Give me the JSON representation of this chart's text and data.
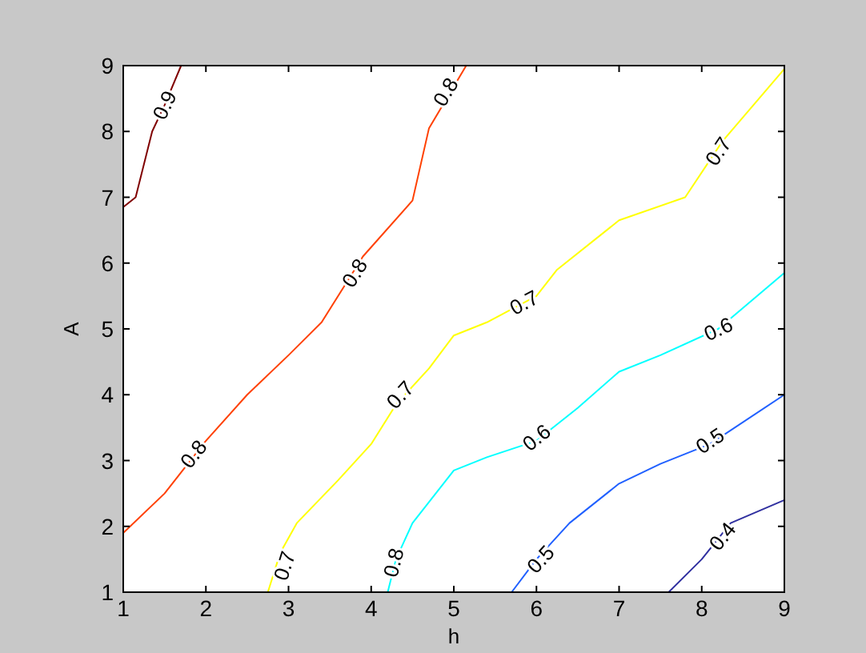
{
  "chart_data": {
    "type": "line",
    "xlabel": "h",
    "ylabel": "A",
    "xlim": [
      1,
      9
    ],
    "ylim": [
      1,
      9
    ],
    "xticks": [
      1,
      2,
      3,
      4,
      5,
      6,
      7,
      8,
      9
    ],
    "yticks": [
      1,
      2,
      3,
      4,
      5,
      6,
      7,
      8,
      9
    ],
    "grid": false,
    "marker": "none",
    "line_style": "solid",
    "series": [
      {
        "color": "#800000",
        "x": [
          1,
          1.15,
          1.35,
          1.5,
          1.7
        ],
        "values": [
          6.85,
          7,
          8,
          8.4,
          9
        ]
      },
      {
        "color": "#ff4000",
        "x": [
          1,
          1.5,
          2,
          2.5,
          3,
          3.4,
          3.9,
          4.5,
          4.7,
          5.15
        ],
        "values": [
          1.9,
          2.5,
          3.3,
          4,
          4.6,
          5.1,
          6.1,
          6.95,
          8.05,
          9
        ]
      },
      {
        "color": "#ffff00",
        "x": [
          2.75,
          2.9,
          3.1,
          3.6,
          4,
          4.3,
          4.7,
          5,
          5.4,
          6,
          6.25,
          7,
          7.8,
          8.25,
          9
        ],
        "values": [
          1,
          1.6,
          2.05,
          2.7,
          3.25,
          3.85,
          4.4,
          4.9,
          5.1,
          5.5,
          5.9,
          6.65,
          7,
          7.85,
          8.95
        ]
      },
      {
        "color": "#00ffff",
        "x": [
          4.2,
          4.3,
          4.5,
          5,
          5.4,
          6,
          6.5,
          7,
          7.5,
          8.2,
          9
        ],
        "values": [
          1,
          1.5,
          2.05,
          2.85,
          3.05,
          3.3,
          3.8,
          4.35,
          4.6,
          5,
          5.85
        ]
      },
      {
        "color": "#2060ff",
        "x": [
          5.7,
          6,
          6.4,
          7,
          7.5,
          8.1,
          9
        ],
        "values": [
          1,
          1.5,
          2.05,
          2.65,
          2.95,
          3.25,
          4
        ]
      },
      {
        "color": "#3030a0",
        "x": [
          7.6,
          8,
          8.35,
          9
        ],
        "values": [
          1,
          1.5,
          2.05,
          2.4
        ]
      }
    ],
    "annotations": [
      {
        "text": "0.9",
        "x": 1.5,
        "y": 8.4
      },
      {
        "text": "0.8",
        "x": 4.9,
        "y": 8.6
      },
      {
        "text": "0.8",
        "x": 3.8,
        "y": 5.85
      },
      {
        "text": "0.8",
        "x": 1.85,
        "y": 3.1
      },
      {
        "text": "0.7",
        "x": 2.95,
        "y": 1.4
      },
      {
        "text": "0.7",
        "x": 4.35,
        "y": 4.0
      },
      {
        "text": "0.7",
        "x": 5.85,
        "y": 5.4
      },
      {
        "text": "0.7",
        "x": 8.2,
        "y": 7.7
      },
      {
        "text": "0.6",
        "x": 6.0,
        "y": 3.35
      },
      {
        "text": "0.6",
        "x": 8.2,
        "y": 5.0
      },
      {
        "text": "0.8",
        "x": 4.27,
        "y": 1.45
      },
      {
        "text": "0.5",
        "x": 6.05,
        "y": 1.5
      },
      {
        "text": "0.5",
        "x": 8.1,
        "y": 3.3
      },
      {
        "text": "0.4",
        "x": 8.25,
        "y": 1.85
      }
    ]
  }
}
